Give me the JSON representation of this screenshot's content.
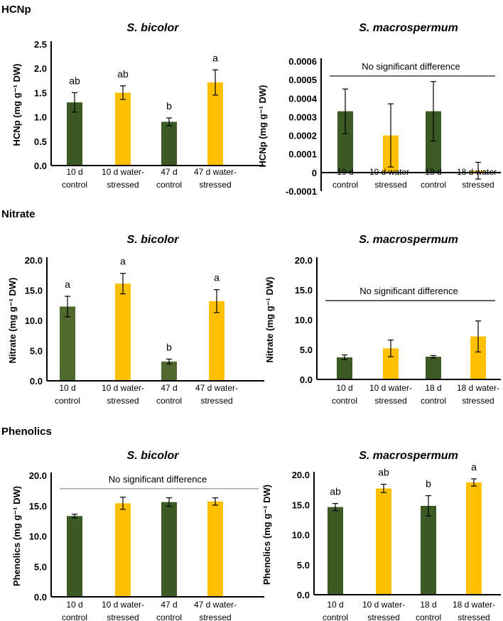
{
  "sections": [
    "HCNp",
    "Nitrate",
    "Phenolics"
  ],
  "colors": {
    "control": "#3b5a24",
    "control_nitrate_bicolor": "#4f6a2c",
    "stressed": "#ffc000"
  },
  "chart_data": [
    {
      "type": "bar",
      "section": "HCNp",
      "title": "S. bicolor",
      "ylabel": "HCNp (mg g⁻¹ DW)",
      "ylim": [
        0,
        2.5
      ],
      "yticks": [
        "0.0",
        "0.5",
        "1.0",
        "1.5",
        "2.0",
        "2.5"
      ],
      "ytick_values": [
        0,
        0.5,
        1,
        1.5,
        2,
        2.5
      ],
      "categories": [
        [
          "10 d",
          "control"
        ],
        [
          "10 d water-",
          "stressed"
        ],
        [
          "47 d",
          "control"
        ],
        [
          "47 d water-",
          "stressed"
        ]
      ],
      "values": [
        1.3,
        1.5,
        0.9,
        1.71
      ],
      "errors": [
        0.2,
        0.14,
        0.08,
        0.26
      ],
      "letters": [
        "ab",
        "ab",
        "b",
        "a"
      ],
      "note": ""
    },
    {
      "type": "bar",
      "section": "HCNp",
      "title": "S. macrospermum",
      "ylabel": "HCNp (mg g⁻¹ DW)",
      "ylim": [
        -0.0001,
        0.0006
      ],
      "yticks": [
        "-0.0001",
        "0",
        "0.0001",
        "0.0002",
        "0.0003",
        "0.0004",
        "0.0005",
        "0.0006"
      ],
      "ytick_values": [
        -0.0001,
        0,
        0.0001,
        0.0002,
        0.0003,
        0.0004,
        0.0005,
        0.0006
      ],
      "categories": [
        [
          "10 d",
          "control"
        ],
        [
          "10 d water-",
          "stressed"
        ],
        [
          "18 d",
          "control"
        ],
        [
          "18 d water-",
          "stressed"
        ]
      ],
      "values": [
        0.00033,
        0.0002,
        0.00033,
        1e-05
      ],
      "errors": [
        0.00012,
        0.00017,
        0.00016,
        4.5e-05
      ],
      "letters": [
        "",
        "",
        "",
        ""
      ],
      "note": "No significant difference",
      "note_level": 0.00052
    },
    {
      "type": "bar",
      "section": "Nitrate",
      "title": "S. bicolor",
      "ylabel": "Nitrate (mg g⁻¹ DW)",
      "ylim": [
        0,
        20
      ],
      "yticks": [
        "0.0",
        "5.0",
        "10.0",
        "15.0",
        "20.0"
      ],
      "ytick_values": [
        0,
        5,
        10,
        15,
        20
      ],
      "categories": [
        [
          "10 d",
          "control"
        ],
        [
          "10 d water-",
          "stressed"
        ],
        [
          "47 d",
          "control"
        ],
        [
          "47 d water-",
          "stressed"
        ]
      ],
      "values": [
        12.3,
        16.1,
        3.2,
        13.2
      ],
      "errors": [
        1.7,
        1.7,
        0.4,
        1.9
      ],
      "letters": [
        "a",
        "a",
        "b",
        "a"
      ],
      "note": ""
    },
    {
      "type": "bar",
      "section": "Nitrate",
      "title": "S. macrospermum",
      "ylabel": "Nitrate (mg g⁻¹ DW)",
      "ylim": [
        0,
        20
      ],
      "yticks": [
        "0.0",
        "5.0",
        "10.0",
        "15.0",
        "20.0"
      ],
      "ytick_values": [
        0,
        5,
        10,
        15,
        20
      ],
      "categories": [
        [
          "10 d",
          "control"
        ],
        [
          "10 d water-",
          "stressed"
        ],
        [
          "18 d",
          "control"
        ],
        [
          "18 d water-",
          "stressed"
        ]
      ],
      "values": [
        3.7,
        5.2,
        3.8,
        7.2
      ],
      "errors": [
        0.4,
        1.4,
        0.2,
        2.6
      ],
      "letters": [
        "",
        "",
        "",
        ""
      ],
      "note": "No significant difference",
      "note_level": 13.2
    },
    {
      "type": "bar",
      "section": "Phenolics",
      "title": "S. bicolor",
      "ylabel": "Phenolics (mg g⁻¹ DW)",
      "ylim": [
        0,
        20
      ],
      "yticks": [
        "0.0",
        "5.0",
        "10.0",
        "15.0",
        "20.0"
      ],
      "ytick_values": [
        0,
        5,
        10,
        15,
        20
      ],
      "categories": [
        [
          "10 d",
          "control"
        ],
        [
          "10 d water-",
          "stressed"
        ],
        [
          "47 d",
          "control"
        ],
        [
          "47 d water-",
          "stressed"
        ]
      ],
      "values": [
        13.3,
        15.4,
        15.6,
        15.7
      ],
      "errors": [
        0.3,
        1.0,
        0.7,
        0.6
      ],
      "letters": [
        "",
        "",
        "",
        ""
      ],
      "note": "No significant difference",
      "note_level": 17.8
    },
    {
      "type": "bar",
      "section": "Phenolics",
      "title": "S. macrospermum",
      "ylabel": "Phenolics (mg g⁻¹ DW)",
      "ylim": [
        0,
        20
      ],
      "yticks": [
        "0.0",
        "5.0",
        "10.0",
        "15.0",
        "20.0"
      ],
      "ytick_values": [
        0,
        5,
        10,
        15,
        20
      ],
      "categories": [
        [
          "10 d",
          "control"
        ],
        [
          "10 d water-",
          "stressed"
        ],
        [
          "18 d",
          "control"
        ],
        [
          "18 d water-",
          "stressed"
        ]
      ],
      "values": [
        14.6,
        17.7,
        14.8,
        18.7
      ],
      "errors": [
        0.6,
        0.7,
        1.7,
        0.6
      ],
      "letters": [
        "ab",
        "ab",
        "b",
        "a"
      ],
      "note": ""
    }
  ]
}
